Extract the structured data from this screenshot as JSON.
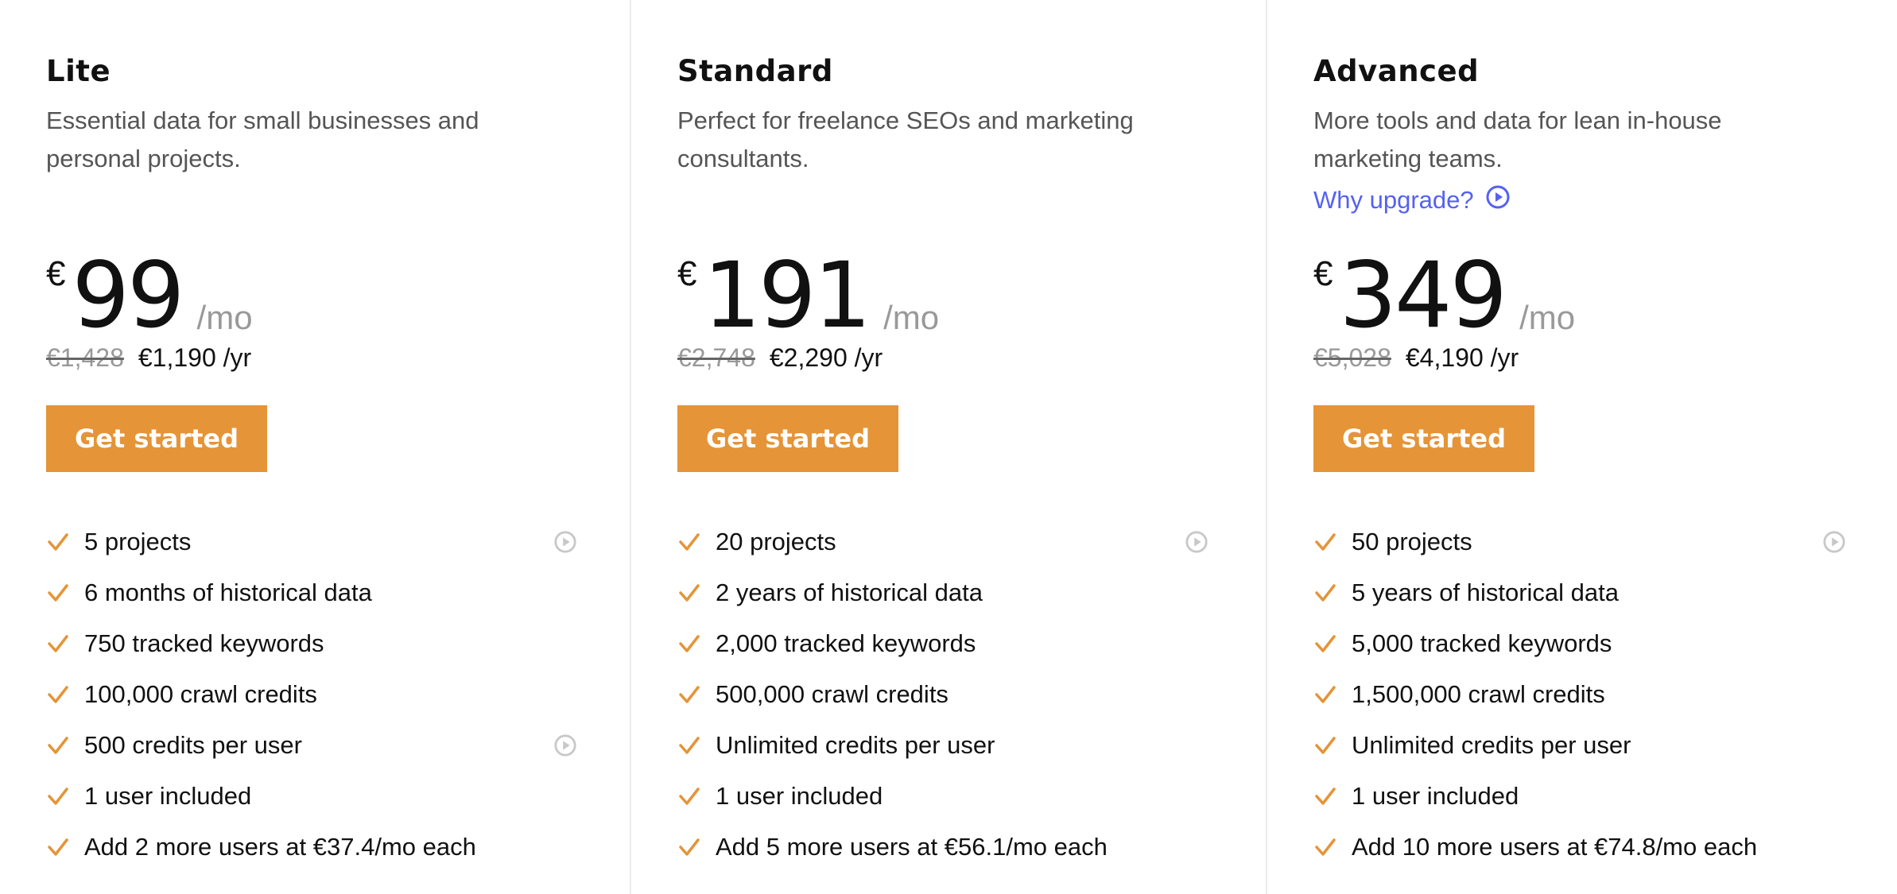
{
  "colors": {
    "accent": "#e59437",
    "link": "#5561f2",
    "muted": "#999999"
  },
  "plans": [
    {
      "name": "Lite",
      "description": "Essential data for small businesses and personal projects.",
      "currency": "€",
      "price": "99",
      "per": "/mo",
      "old_yearly": "€1,428",
      "yearly": "€1,190 /yr",
      "cta": "Get started",
      "features": [
        {
          "text": "5 projects",
          "play": true
        },
        {
          "text": "6 months of historical data"
        },
        {
          "text": "750 tracked keywords"
        },
        {
          "text": "100,000 crawl credits"
        },
        {
          "text": "500 credits per user",
          "play": true
        },
        {
          "text": "1 user included"
        },
        {
          "text": "Add 2 more users at €37.4/mo each"
        }
      ]
    },
    {
      "name": "Standard",
      "description": "Perfect for freelance SEOs and marketing consultants.",
      "currency": "€",
      "price": "191",
      "per": "/mo",
      "old_yearly": "€2,748",
      "yearly": "€2,290 /yr",
      "cta": "Get started",
      "features": [
        {
          "text": "20 projects",
          "play": true
        },
        {
          "text": "2 years of historical data"
        },
        {
          "text": "2,000 tracked keywords"
        },
        {
          "text": "500,000 crawl credits"
        },
        {
          "text": "Unlimited credits per user"
        },
        {
          "text": "1 user included"
        },
        {
          "text": "Add 5 more users at €56.1/mo each"
        }
      ]
    },
    {
      "name": "Advanced",
      "description": "More tools and data for lean in-house marketing teams.",
      "why_upgrade": "Why upgrade?",
      "currency": "€",
      "price": "349",
      "per": "/mo",
      "old_yearly": "€5,028",
      "yearly": "€4,190 /yr",
      "cta": "Get started",
      "features": [
        {
          "text": "50 projects",
          "play": true
        },
        {
          "text": "5 years of historical data"
        },
        {
          "text": "5,000 tracked keywords"
        },
        {
          "text": "1,500,000 crawl credits"
        },
        {
          "text": "Unlimited credits per user"
        },
        {
          "text": "1 user included"
        },
        {
          "text": "Add 10 more users at €74.8/mo each"
        }
      ]
    }
  ]
}
